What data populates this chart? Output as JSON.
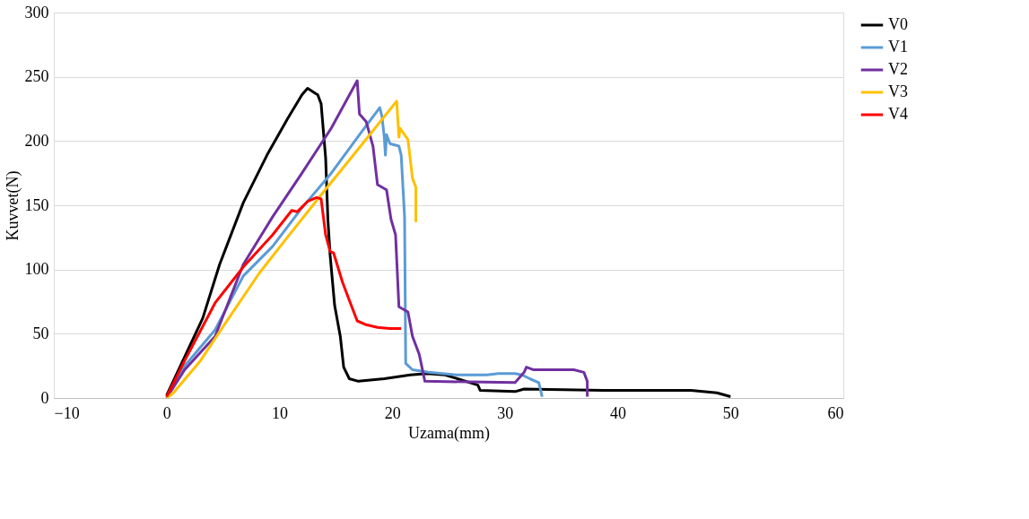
{
  "chart_data": {
    "type": "line",
    "xlabel": "Uzama(mm)",
    "ylabel": "Kuvvet(N)",
    "xlim": [
      -10,
      60
    ],
    "xticks": [
      -10,
      0,
      10,
      20,
      30,
      40,
      50,
      60
    ],
    "ylim": [
      0,
      300
    ],
    "yticks": [
      0,
      50,
      100,
      150,
      200,
      250,
      300
    ],
    "grid": "y",
    "legend": "right",
    "marker": "none",
    "line_style": "solid",
    "series": [
      {
        "name": "V0",
        "color": "#000000",
        "x": [
          0,
          1.6,
          3.2,
          4.7,
          6.8,
          8.9,
          10.7,
          12.0,
          12.5,
          13.2,
          13.4,
          13.7,
          14.1,
          14.3,
          14.5,
          14.9,
          15.4,
          15.7,
          16.2,
          17,
          19.3,
          21.6,
          23.1,
          24.7,
          27.6,
          27.8,
          30.9,
          31.7,
          38.7,
          46.5,
          48.8,
          50
        ],
        "values": [
          2,
          32,
          62,
          104,
          152,
          189,
          217,
          236,
          241,
          237,
          236,
          229,
          187,
          139,
          111,
          72,
          48,
          24,
          15,
          13,
          15,
          18,
          19,
          18,
          10,
          6,
          5,
          7,
          6,
          6,
          4,
          1
        ]
      },
      {
        "name": "V1",
        "color": "#5b9bd5",
        "x": [
          0,
          1.6,
          4.3,
          6.8,
          9.4,
          12,
          14.6,
          17.2,
          18.9,
          19.1,
          19.3,
          19.4,
          19.5,
          19.8,
          20.6,
          20.8,
          21.1,
          21.2,
          21.8,
          23.2,
          25.7,
          28.4,
          29.4,
          30.9,
          31.5,
          32.2,
          33,
          33.3
        ],
        "values": [
          0,
          25,
          53,
          95,
          118,
          148,
          175,
          206,
          226,
          219,
          203,
          189,
          205,
          198,
          196,
          189,
          141,
          27,
          22,
          20,
          18,
          18,
          19,
          19,
          18,
          15,
          12,
          1
        ]
      },
      {
        "name": "V2",
        "color": "#7030a0",
        "x": [
          0,
          1.6,
          4.3,
          6.8,
          9.4,
          12,
          14.6,
          16.9,
          17.1,
          17.7,
          18.3,
          18.7,
          19.5,
          19.9,
          20.3,
          20.6,
          21.4,
          21.8,
          22.4,
          22.9,
          30.9,
          31.7,
          31.9,
          32.5,
          36.1,
          37,
          37.3,
          37.3
        ],
        "values": [
          0,
          22,
          48,
          104,
          141,
          175,
          210,
          247,
          221,
          215,
          196,
          166,
          162,
          139,
          127,
          71,
          67,
          48,
          34,
          13,
          12,
          20,
          24,
          22,
          22,
          20,
          13,
          1
        ]
      },
      {
        "name": "V3",
        "color": "#ffc000",
        "x": [
          0,
          0.6,
          3,
          5.5,
          8.2,
          10.7,
          13.6,
          17.2,
          20.4,
          20.6,
          20.7,
          21.4,
          21.8,
          22.1,
          22.1
        ],
        "values": [
          0,
          4,
          29,
          62,
          97,
          125,
          157,
          196,
          231,
          203,
          210,
          201,
          171,
          164,
          137
        ]
      },
      {
        "name": "V4",
        "color": "#ff0000",
        "x": [
          0,
          1.6,
          4.3,
          6.8,
          9.4,
          11.1,
          11.6,
          12.5,
          13.3,
          13.7,
          14.1,
          14.5,
          14.8,
          15.6,
          16.2,
          16.9,
          17.7,
          18.7,
          19.8,
          20.8
        ],
        "values": [
          1,
          29,
          74,
          102,
          127,
          146,
          145,
          153,
          156,
          155,
          127,
          114,
          113,
          90,
          76,
          60,
          57,
          55,
          54,
          54
        ]
      }
    ]
  }
}
